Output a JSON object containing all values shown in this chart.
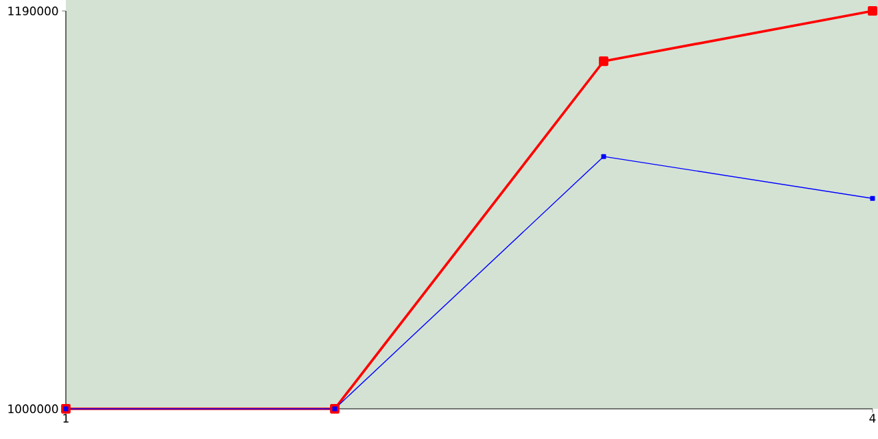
{
  "chart_data": {
    "type": "line",
    "x": [
      1,
      2,
      3,
      4
    ],
    "series": [
      {
        "color": "#ff0000",
        "values": [
          1000000,
          1000000,
          1166000,
          1190000
        ]
      },
      {
        "color": "#0000ff",
        "values": [
          1000000,
          1000000,
          1120500,
          1100500
        ]
      }
    ],
    "xlim": [
      1,
      4
    ],
    "ylim": [
      1000000,
      1190000
    ],
    "xticks": [
      1,
      4
    ],
    "yticks": [
      1000000,
      1190000
    ],
    "marker": "square"
  }
}
